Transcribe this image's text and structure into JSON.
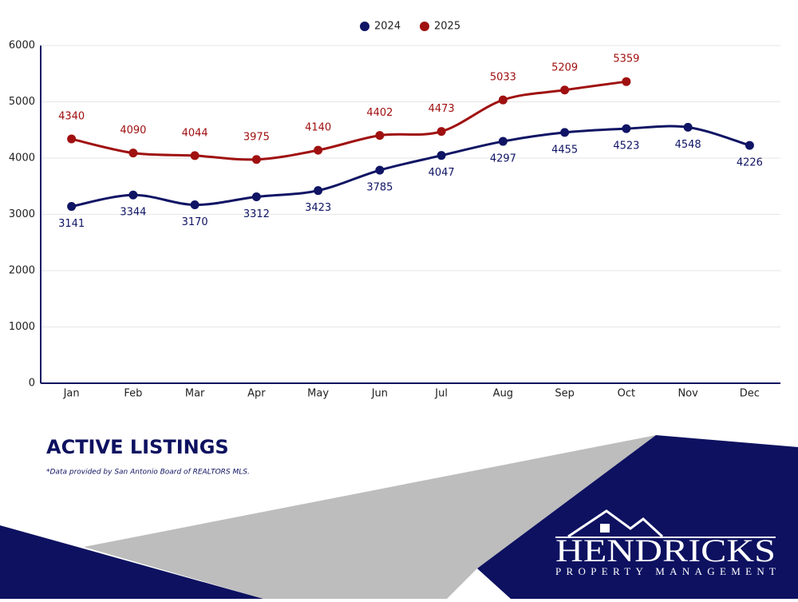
{
  "chart_data": {
    "type": "line",
    "title": "ACTIVE LISTINGS",
    "note": "*Data provided by San Antonio Board of REALTORS MLS.",
    "categories": [
      "Jan",
      "Feb",
      "Mar",
      "Apr",
      "May",
      "Jun",
      "Jul",
      "Aug",
      "Sep",
      "Oct",
      "Nov",
      "Dec"
    ],
    "series": [
      {
        "name": "2024",
        "color": "#0f1464",
        "values": [
          3141,
          3344,
          3170,
          3312,
          3423,
          3785,
          4047,
          4297,
          4455,
          4523,
          4548,
          4226
        ]
      },
      {
        "name": "2025",
        "color": "#a01010",
        "values": [
          4340,
          4090,
          4044,
          3975,
          4140,
          4402,
          4473,
          5033,
          5209,
          5359,
          null,
          null
        ]
      }
    ],
    "ylim": [
      0,
      6000
    ],
    "yticks": [
      0,
      1000,
      2000,
      3000,
      4000,
      5000,
      6000
    ],
    "grid": true,
    "legend": "top"
  },
  "logo": {
    "name": "HENDRICKS",
    "tagline": "PROPERTY MANAGEMENT"
  }
}
